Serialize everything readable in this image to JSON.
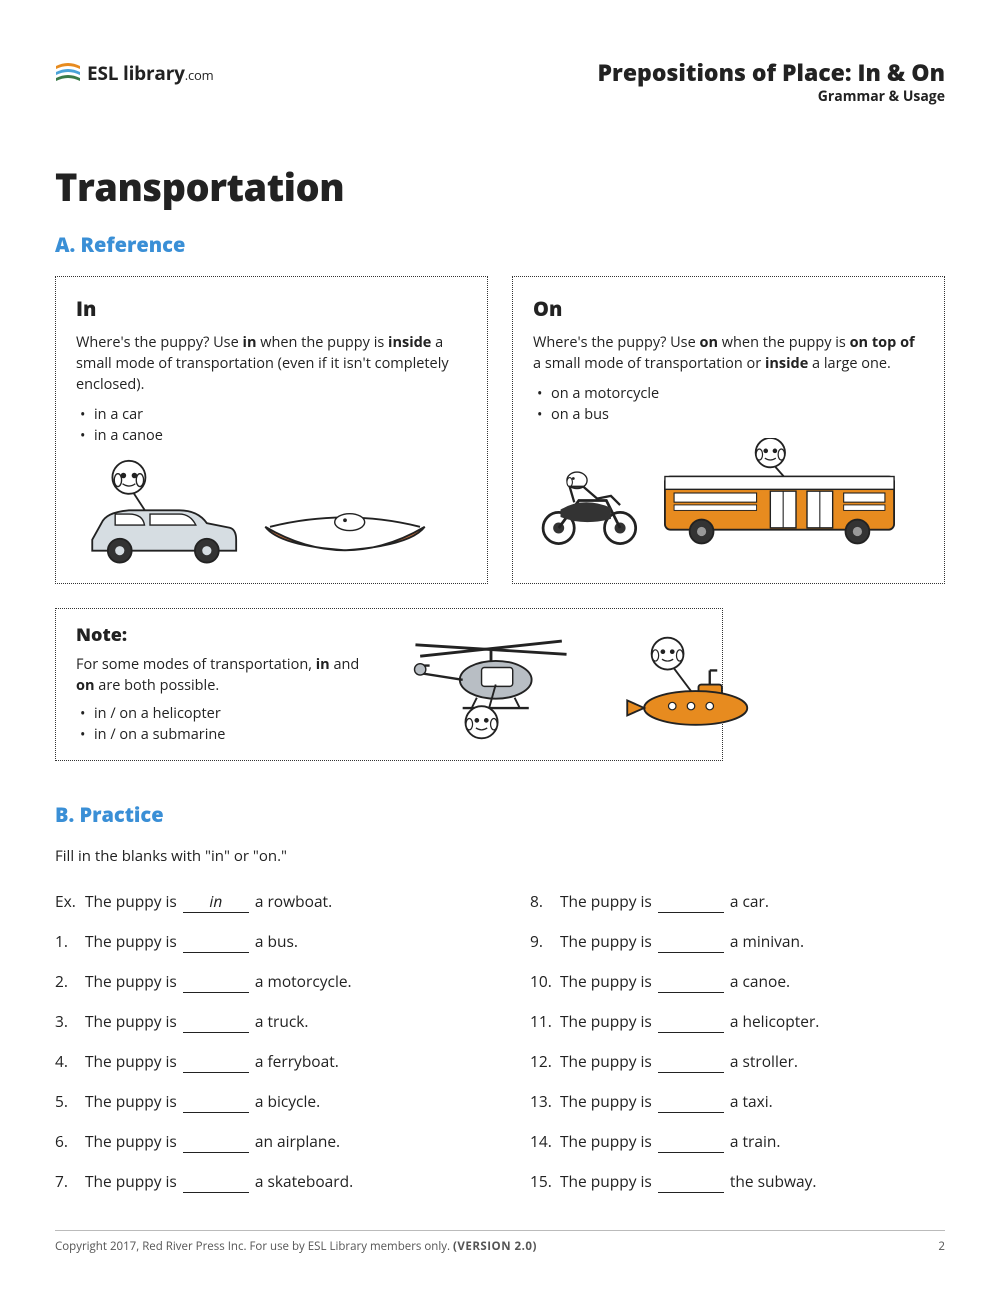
{
  "brand": {
    "name_bold": "ESL",
    "name_rest": " library",
    "name_tld": ".com"
  },
  "header": {
    "title": "Prepositions of Place: In & On",
    "subtitle": "Grammar & Usage"
  },
  "main_title": "Transportation",
  "sectionA": {
    "label": "A. Reference"
  },
  "in_box": {
    "heading": "In",
    "body_pre": "Where's the puppy? Use ",
    "body_kw1": "in",
    "body_mid": " when the puppy is ",
    "body_kw2": "inside",
    "body_post": " a small mode of transportation (even if it isn't completely enclosed).",
    "items": [
      "in a car",
      "in a canoe"
    ]
  },
  "on_box": {
    "heading": "On",
    "body_pre": "Where's the puppy? Use ",
    "body_kw1": "on",
    "body_mid": " when the puppy is ",
    "body_kw2": "on top of",
    "body_mid2": " a small mode of transportation or ",
    "body_kw3": "inside",
    "body_post": " a large one.",
    "items": [
      "on a motorcycle",
      "on a bus"
    ]
  },
  "note": {
    "heading": "Note:",
    "body_pre": "For some modes of transportation, ",
    "kw1": "in",
    "mid": " and ",
    "kw2": "on",
    "body_post": " are both possible.",
    "items": [
      "in / on a helicopter",
      "in / on a submarine"
    ]
  },
  "sectionB": {
    "label": "B. Practice"
  },
  "practice": {
    "intro": "Fill in the blanks with \"in\" or \"on.\"",
    "example": {
      "num": "Ex.",
      "pre": "The puppy is ",
      "answer": "in",
      "post": " a rowboat."
    },
    "left": [
      {
        "num": "1.",
        "pre": "The puppy is ",
        "post": " a bus."
      },
      {
        "num": "2.",
        "pre": "The puppy is ",
        "post": " a motorcycle."
      },
      {
        "num": "3.",
        "pre": "The puppy is ",
        "post": " a truck."
      },
      {
        "num": "4.",
        "pre": "The puppy is ",
        "post": " a ferryboat."
      },
      {
        "num": "5.",
        "pre": "The puppy is ",
        "post": " a bicycle."
      },
      {
        "num": "6.",
        "pre": "The puppy is ",
        "post": " an airplane."
      },
      {
        "num": "7.",
        "pre": "The puppy is ",
        "post": " a skateboard."
      }
    ],
    "right": [
      {
        "num": "8.",
        "pre": "The puppy is ",
        "post": " a car."
      },
      {
        "num": "9.",
        "pre": "The puppy is ",
        "post": " a minivan."
      },
      {
        "num": "10.",
        "pre": "The puppy is ",
        "post": " a canoe."
      },
      {
        "num": "11.",
        "pre": "The puppy is ",
        "post": " a helicopter."
      },
      {
        "num": "12.",
        "pre": "The puppy is ",
        "post": " a stroller."
      },
      {
        "num": "13.",
        "pre": "The puppy is ",
        "post": " a taxi."
      },
      {
        "num": "14.",
        "pre": "The puppy is ",
        "post": " a train."
      },
      {
        "num": "15.",
        "pre": "The puppy is ",
        "post": " the subway."
      }
    ]
  },
  "footer": {
    "copyright": "Copyright 2017, Red River Press Inc. For use by ESL Library members only.  ",
    "version": "(VERSION 2.0)",
    "page": "2"
  },
  "colors": {
    "accent": "#3a8fd6",
    "bus_orange": "#e78b1f",
    "canoe": "#c96f3a",
    "grey": "#b8bec4",
    "dark": "#222222"
  }
}
